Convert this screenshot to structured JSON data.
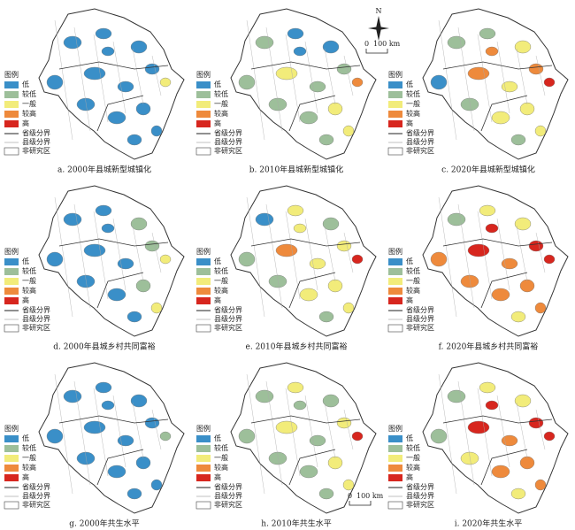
{
  "legend": {
    "title": "图例",
    "classes": [
      {
        "label": "低",
        "color": "#3a8fc8"
      },
      {
        "label": "较低",
        "color": "#9dbf9a"
      },
      {
        "label": "一般",
        "color": "#f2ec7a"
      },
      {
        "label": "较高",
        "color": "#ee8a3c"
      },
      {
        "label": "高",
        "color": "#d7261e"
      }
    ],
    "lines": [
      "省级分界",
      "县级分界"
    ],
    "non_study": "非研究区"
  },
  "north": "N",
  "scale": {
    "start": "0",
    "end": "100 km"
  },
  "panels": [
    {
      "caption": "a. 2000年县城新型城镇化"
    },
    {
      "caption": "b. 2010年县城新型城镇化"
    },
    {
      "caption": "c. 2020年县城新型城镇化"
    },
    {
      "caption": "d. 2000年县城乡村共同富裕"
    },
    {
      "caption": "e. 2010年县城乡村共同富裕"
    },
    {
      "caption": "f. 2020年县城乡村共同富裕"
    },
    {
      "caption": "g. 2000年共生水平"
    },
    {
      "caption": "h. 2010年共生水平"
    },
    {
      "caption": "i. 2020年共生水平"
    }
  ]
}
